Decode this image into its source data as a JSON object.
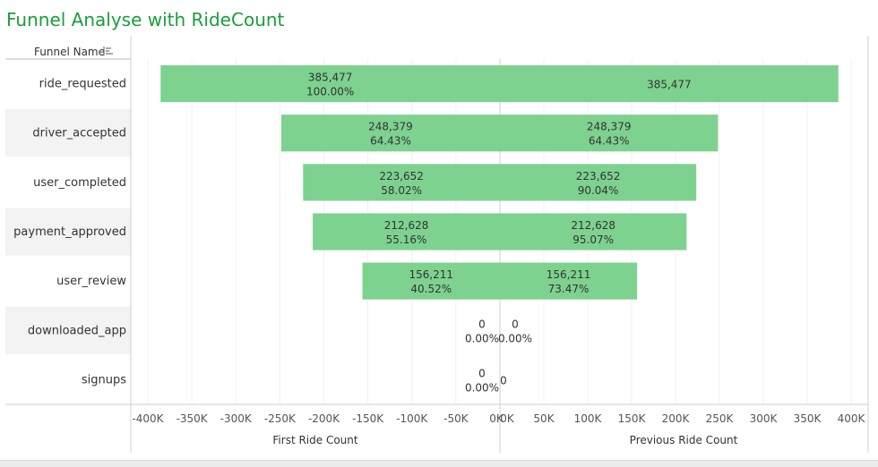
{
  "title": "Funnel Analyse with RideCount",
  "chart_data": {
    "type": "bar",
    "orientation": "horizontal-diverging",
    "row_header": "Funnel Name",
    "categories": [
      "ride_requested",
      "driver_accepted",
      "user_completed",
      "payment_approved",
      "user_review",
      "downloaded_app",
      "signups"
    ],
    "series": [
      {
        "name": "First Ride Count",
        "values": [
          385477,
          248379,
          223652,
          212628,
          156211,
          0,
          0
        ],
        "value_labels": [
          "385,477",
          "248,379",
          "223,652",
          "212,628",
          "156,211",
          "0",
          "0"
        ],
        "pct_labels": [
          "100.00%",
          "64.43%",
          "58.02%",
          "55.16%",
          "40.52%",
          "0.00%",
          "0.00%"
        ]
      },
      {
        "name": "Previous Ride Count",
        "values": [
          385477,
          248379,
          223652,
          212628,
          156211,
          0,
          0
        ],
        "value_labels": [
          "385,477",
          "248,379",
          "223,652",
          "212,628",
          "156,211",
          "0",
          "0"
        ],
        "pct_labels": [
          "",
          "64.43%",
          "90.04%",
          "95.07%",
          "73.47%",
          "0.00%",
          ""
        ]
      }
    ],
    "left_axis": {
      "label": "First Ride Count",
      "ticks": [
        "-400K",
        "-350K",
        "-300K",
        "-250K",
        "-200K",
        "-150K",
        "-100K",
        "-50K",
        "0K"
      ],
      "range": [
        -400000,
        0
      ]
    },
    "right_axis": {
      "label": "Previous Ride Count",
      "ticks": [
        "0K",
        "50K",
        "100K",
        "150K",
        "200K",
        "250K",
        "300K",
        "350K",
        "400K"
      ],
      "range": [
        0,
        400000
      ]
    },
    "grid": true,
    "colors": {
      "bar": "#7dd28f",
      "title": "#1a9e3a",
      "band": "#f3f3f3"
    }
  }
}
